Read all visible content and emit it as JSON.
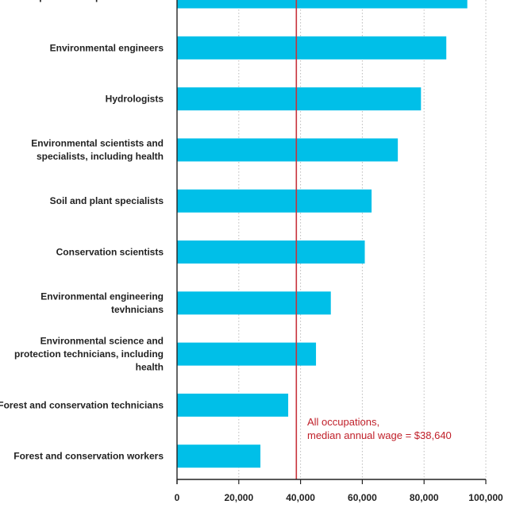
{
  "colors": {
    "bar": "#00bfe8",
    "reference": "#c8323a",
    "annotation": "#c0202a",
    "axis": "#222222"
  },
  "chart_data": {
    "type": "bar",
    "orientation": "horizontal",
    "title": "",
    "xlabel": "",
    "ylabel": "",
    "xlim": [
      0,
      100000
    ],
    "xticks": [
      0,
      20000,
      40000,
      60000,
      80000,
      100000
    ],
    "xtick_labels": [
      "0",
      "20,000",
      "40,000",
      "60,000",
      "80,000",
      "100,000"
    ],
    "grid": true,
    "categories": [
      "Atmospheric and space scientists",
      "Environmental engineers",
      "Hydrologists",
      "Environmental scientists and specialists, including health",
      "Soil and plant specialists",
      "Conservation scientists",
      "Environmental engineering tevhnicians",
      "Environmental science and protection technicians, including health",
      "Forest and conservation technicians",
      "Forest and conservation workers"
    ],
    "category_lines": [
      [
        "Atmospheric and space scientists"
      ],
      [
        "Environmental engineers"
      ],
      [
        "Hydrologists"
      ],
      [
        "Environmental scientists and",
        "specialists, including health"
      ],
      [
        "Soil and plant specialists"
      ],
      [
        "Conservation scientists"
      ],
      [
        "Environmental engineering",
        "tevhnicians"
      ],
      [
        "Environmental science and",
        "protection technicians, including",
        "health"
      ],
      [
        "Forest and conservation technicians"
      ],
      [
        "Forest and conservation workers"
      ]
    ],
    "values": [
      94000,
      87200,
      79000,
      71500,
      63000,
      60800,
      49800,
      45000,
      36000,
      27000
    ],
    "reference_line": {
      "value": 38640,
      "label_lines": [
        "All occupations,",
        "median annual wage = $38,640"
      ]
    }
  }
}
